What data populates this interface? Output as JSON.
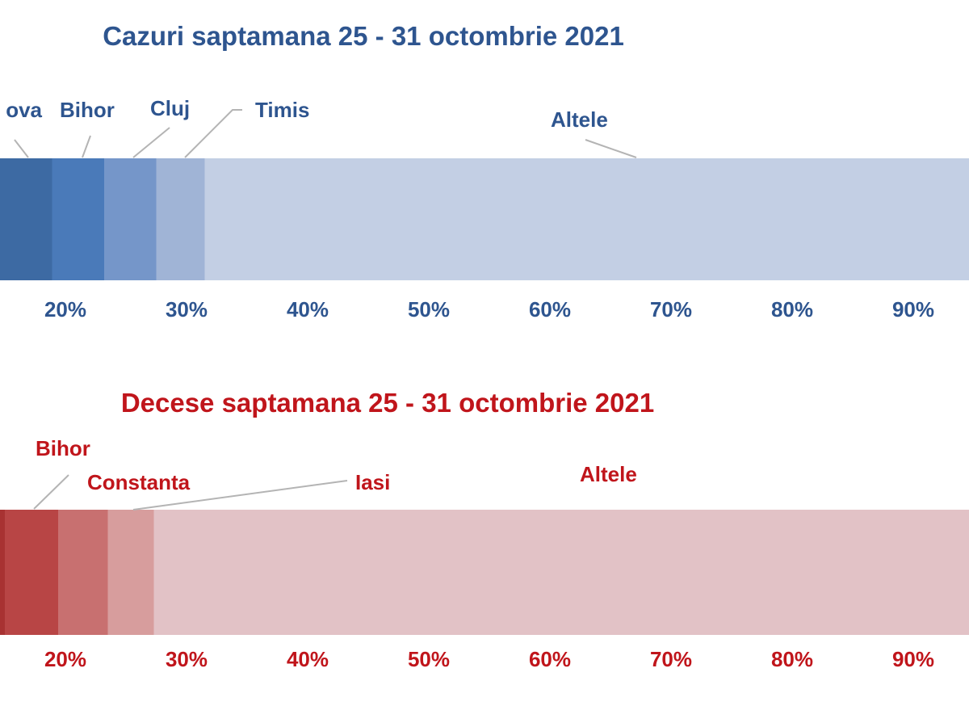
{
  "chart_data": [
    {
      "type": "bar",
      "orientation": "horizontal-stacked",
      "title": "Cazuri saptamana 25 - 31 octombrie 2021",
      "theme_color": "#2e558f",
      "ticks": [
        "20%",
        "30%",
        "40%",
        "50%",
        "60%",
        "70%",
        "80%",
        "90%"
      ],
      "tick_values": [
        20,
        30,
        40,
        50,
        60,
        70,
        80,
        90
      ],
      "visible_range": [
        14.6,
        94.6
      ],
      "segments": [
        {
          "name": "ova",
          "start": 0,
          "end": 18.9,
          "color": "#3d6aa3"
        },
        {
          "name": "Bihor",
          "start": 18.9,
          "end": 23.2,
          "color": "#4a7ab9"
        },
        {
          "name": "Cluj",
          "start": 23.2,
          "end": 27.5,
          "color": "#7596c9"
        },
        {
          "name": "Timis",
          "start": 27.5,
          "end": 31.5,
          "color": "#a0b4d6"
        },
        {
          "name": "Altele",
          "start": 31.5,
          "end": 100,
          "color": "#c3cfe4"
        }
      ]
    },
    {
      "type": "bar",
      "orientation": "horizontal-stacked",
      "title": "Decese saptamana 25 - 31 octombrie 2021",
      "theme_color": "#c0151b",
      "ticks": [
        "20%",
        "30%",
        "40%",
        "50%",
        "60%",
        "70%",
        "80%",
        "90%"
      ],
      "tick_values": [
        20,
        30,
        40,
        50,
        60,
        70,
        80,
        90
      ],
      "visible_range": [
        14.6,
        94.6
      ],
      "segments": [
        {
          "name": "",
          "start": 0,
          "end": 15.0,
          "color": "#a83232"
        },
        {
          "name": "Bihor",
          "start": 15.0,
          "end": 19.4,
          "color": "#b84545"
        },
        {
          "name": "Constanta",
          "start": 19.4,
          "end": 23.5,
          "color": "#c87070"
        },
        {
          "name": "Iasi",
          "start": 23.5,
          "end": 27.3,
          "color": "#d79d9d"
        },
        {
          "name": "Altele",
          "start": 27.3,
          "end": 100,
          "color": "#e2c2c6"
        }
      ]
    }
  ]
}
